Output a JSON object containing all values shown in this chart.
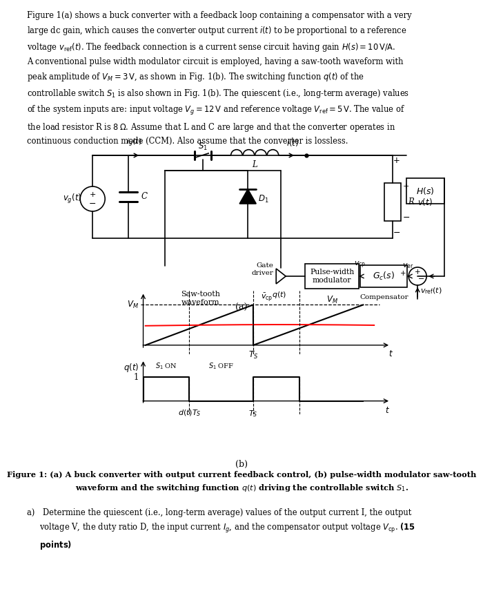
{
  "bg_color": "#ffffff",
  "text_color": "#000000",
  "paragraph_lines": [
    "Figure 1(a) shows a buck converter with a feedback loop containing a compensator with a very",
    "large dc gain, which causes the converter output current $i(t)$ to be proportional to a reference",
    "voltage $v_{\\rm ref}(t)$. The feedback connection is a current sense circuit having gain $H(s) = 10\\,{\\rm V/A}$.",
    "A conventional pulse width modulator circuit is employed, having a saw-tooth waveform with",
    "peak amplitude of $V_M = 3\\,{\\rm V}$, as shown in Fig. 1(b). The switching function $q(t)$ of the",
    "controllable switch $S_1$ is also shown in Fig. 1(b). The quiescent (i.e., long-term average) values",
    "of the system inputs are: input voltage $V_g = 12\\,{\\rm V}$ and reference voltage $V_{\\rm ref} = 5\\,{\\rm V}$. The value of",
    "the load resistor R is $8\\,\\Omega$. Assume that L and C are large and that the converter operates in",
    "continuous conduction mode (CCM). Also assume that the converter is lossless."
  ],
  "caption_line1": "Figure 1: (a) A buck converter with output current feedback control, (b) pulse-width modulator saw-tooth",
  "caption_line2": "waveform and the switching function $q(t)$ driving the controllable switch $S_1$.",
  "part_a_line1": "a)\\enspace Determine the quiescent (i.e., long-term average) values of the output current I, the output",
  "part_a_line2": "\\enspace\\enspace voltage V, the duty ratio D, the input current $I_g$, and the compensator output voltage $V_{\\rm cp}$. (\\textbf{15}",
  "part_a_line3": "\\enspace\\enspace \\textbf{points})"
}
